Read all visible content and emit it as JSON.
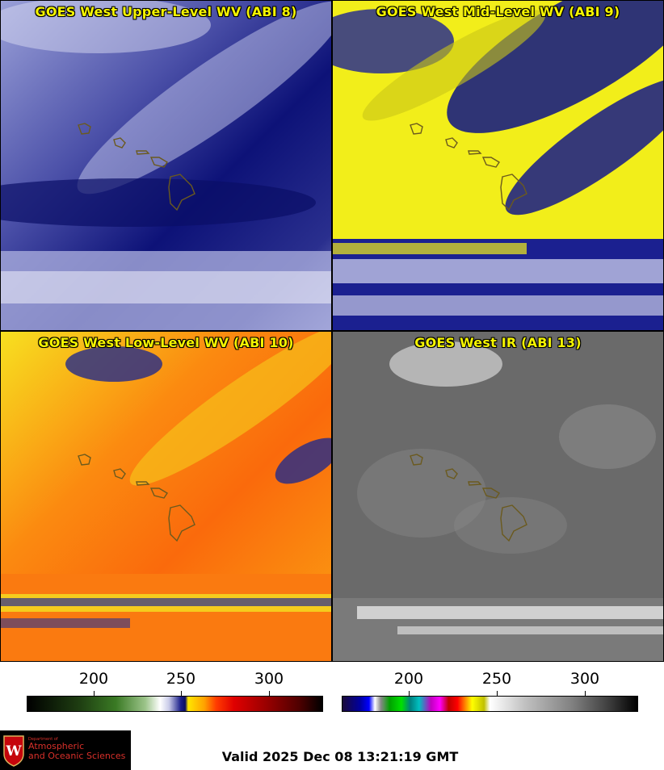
{
  "panels": {
    "upper": {
      "title": "GOES West Upper-Level WV (ABI 8)"
    },
    "mid": {
      "title": "GOES West Mid-Level WV (ABI 9)"
    },
    "low": {
      "title": "GOES West Low-Level WV (ABI 10)"
    },
    "ir": {
      "title": "GOES West IR (ABI 13)"
    }
  },
  "colorbars": {
    "wv": {
      "ticks": [
        "200",
        "250",
        "300"
      ]
    },
    "ir": {
      "ticks": [
        "200",
        "250",
        "300"
      ]
    }
  },
  "logo": {
    "department": "Department of",
    "name_line1": "Atmospheric",
    "name_line2": "and Oceanic Sciences"
  },
  "valid_time": "Valid 2025 Dec 08 13:21:19 GMT",
  "colors": {
    "title_yellow": "#f5f500",
    "wv_dark_blue": "#0b1070",
    "mid_yellow": "#f2ee1a",
    "low_orange": "#fb7d0e",
    "ir_gray": "#6a6a6a",
    "coastline": "#6b5a1e"
  }
}
